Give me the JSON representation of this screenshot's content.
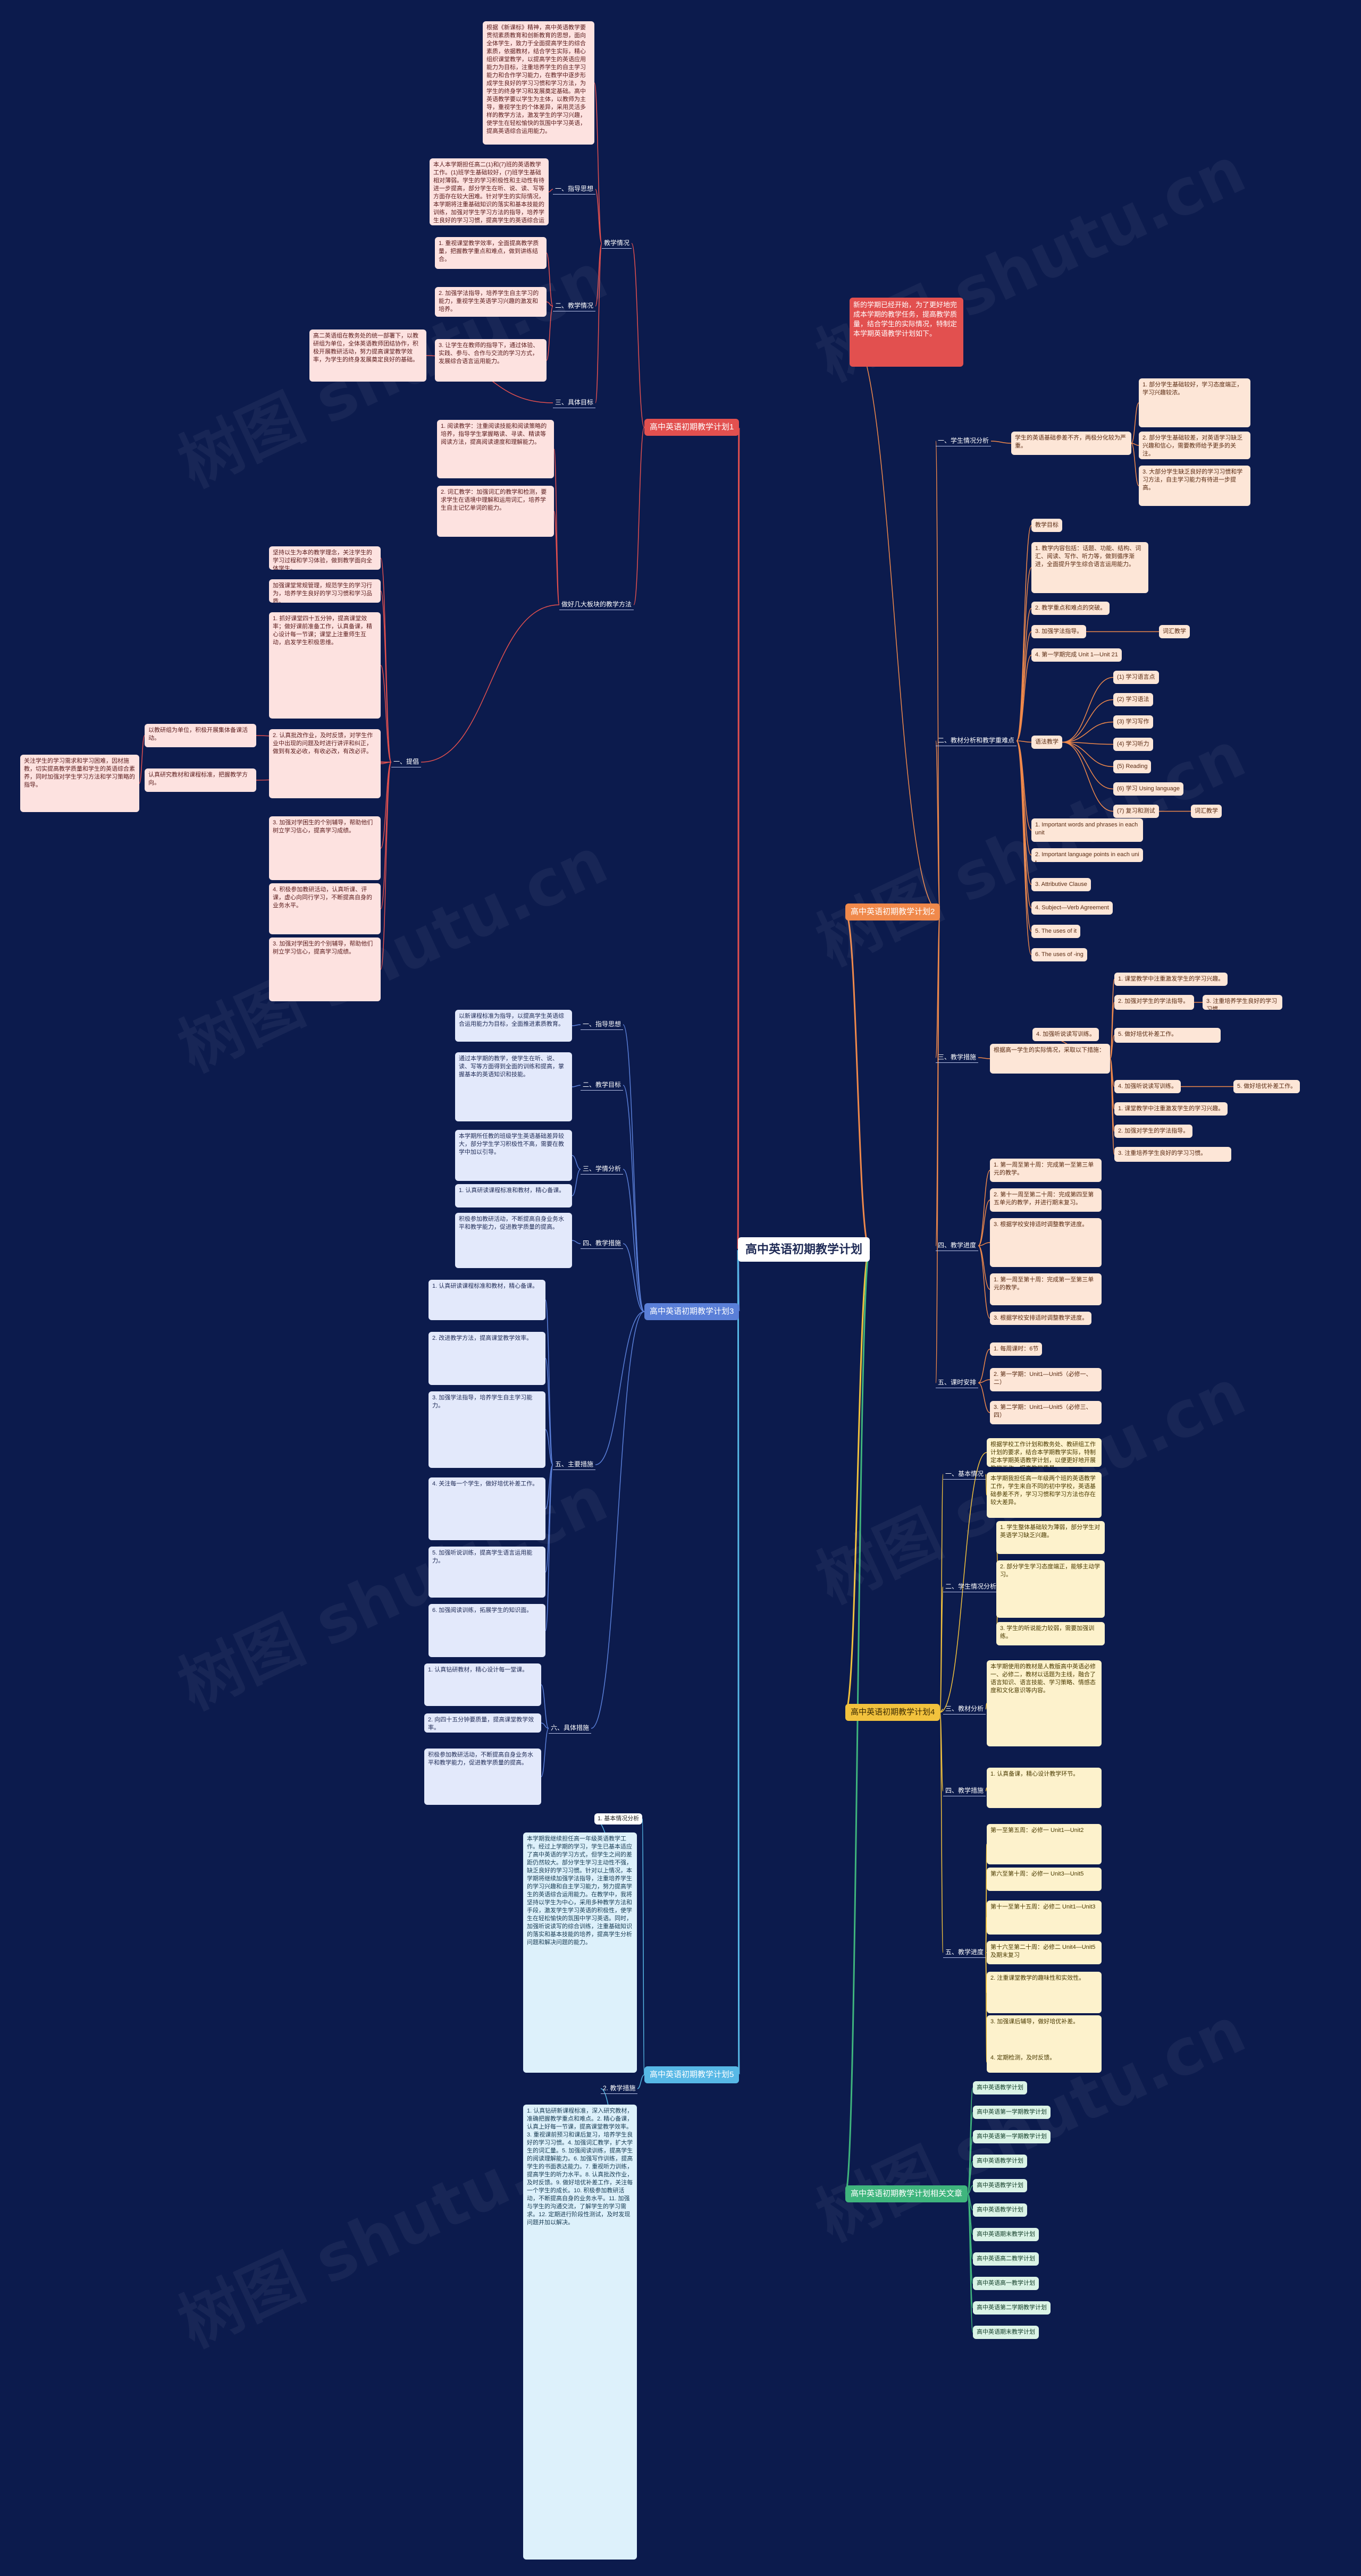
{
  "root": "高中英语初期教学计划",
  "watermark": "树图 shutu.cn",
  "branches": {
    "b1": "高中英语初期教学计划1",
    "b2": "高中英语初期教学计划2",
    "b3": "高中英语初期教学计划3",
    "b4": "高中英语初期教学计划4",
    "b5": "高中英语初期教学计划5",
    "b6": "高中英语初期教学计划相关文章"
  },
  "b1": {
    "sub_jiaoxue": "教学情况",
    "lab_yi": "一、指导思想",
    "lab_er": "二、教学情况",
    "lab_san": "三、具体目标",
    "lab_zuohao": "做好几大板块的教学方法",
    "lab_ti": "一、提倡",
    "t_intro": "根据《新课标》精神，高中英语教学要贯彻素质教育和创新教育的思想，面向全体学生，致力于全面提高学生的综合素质，依据教材，结合学生实际，精心组织课堂教学，以提高学生的英语应用能力为目标，注重培养学生的自主学习能力和合作学习能力，在教学中逐步形成学生良好的学习习惯和学习方法，为学生的终身学习和发展奠定基础。高中英语教学要以学生为主体，以教师为主导，重视学生的个体差异，采用灵活多样的教学方法，激发学生的学习兴趣，使学生在轻松愉快的氛围中学习英语，提高英语综合运用能力。",
    "t_yi": "本人本学期担任高二(1)和(7)班的英语教学工作。(1)班学生基础较好，(7)班学生基础相对薄弱。学生的学习积极性和主动性有待进一步提高，部分学生在听、说、读、写等方面存在较大困难。针对学生的实际情况，本学期将注重基础知识的落实和基本技能的训练，加强对学生学习方法的指导，培养学生良好的学习习惯，提高学生的英语综合运用能力。",
    "t_er1": "1. 重视课堂教学效率，全面提高教学质量，把握教学重点和难点，做到讲练结合。",
    "t_er2": "2. 加强学法指导，培养学生自主学习的能力，重视学生英语学习兴趣的激发和培养。",
    "t_er3": "3. 让学生在教师的指导下，通过体验、实践、参与、合作与交流的学习方式，发展综合语言运用能力。",
    "t_san": "高二英语组在教务处的统一部署下，以教研组为单位，全体英语教师团结协作，积极开展教研活动，努力提高课堂教学效率，为学生的终身发展奠定良好的基础。",
    "t_dz1": "1. 阅读教学：注重阅读技能和阅读策略的培养，指导学生掌握略读、寻读、精读等阅读方法，提高阅读速度和理解能力。",
    "t_dz2": "2. 词汇教学：加强词汇的教学和检测，要求学生在语境中理解和运用词汇，培养学生自主记忆单词的能力。",
    "t_ti_a": "坚持以生为本的教学理念，关注学生的学习过程和学习体验，做到教学面向全体学生。",
    "t_ti_b": "加强课堂常规管理，规范学生的学习行为，培养学生良好的学习习惯和学习品质。",
    "t_ti_c": "1. 抓好课堂四十五分钟，提高课堂效率；做好课前准备工作，认真备课，精心设计每一节课；课堂上注重师生互动，启发学生积极思维。",
    "t_ti_d": "2. 认真批改作业，及时反馈，对学生作业中出现的问题及时进行讲评和纠正，做到有发必收，有收必改，有改必评。",
    "t_ti_e": "3. 加强对学困生的个别辅导，帮助他们树立学习信心，提高学习成绩。",
    "t_ti_f": "4. 积极参加教研活动，认真听课、评课，虚心向同行学习，不断提高自身的业务水平。",
    "t_left1": "以教研组为单位，积极开展集体备课活动。",
    "t_left2": "认真研究教材和课程标准，把握教学方向。",
    "t_left3": "关注学生的学习需求和学习困难，因材施教，切实提高教学质量和学生的英语综合素养，同时加强对学生学习方法和学习策略的指导。"
  },
  "b2": {
    "t_red": "新的学期已经开始，为了更好地完成本学期的教学任务，提高教学质量，结合学生的实际情况，特制定本学期英语教学计划如下。",
    "lab_1": "一、学生情况分析",
    "t_1a": "学生的英语基础参差不齐，两极分化较为严重。",
    "t_1b": "1. 部分学生基础较好，学习态度端正，学习兴趣较浓。",
    "t_1c": "2. 部分学生基础较差，对英语学习缺乏兴趣和信心，需要教师给予更多的关注。",
    "t_1d": "3. 大部分学生缺乏良好的学习习惯和学习方法，自主学习能力有待进一步提高。",
    "lab_2": "二、教材分析和教学重难点",
    "t_2a": "教学目标",
    "t_2b": "1. 教学内容包括：话题、功能、结构、词汇、阅读、写作、听力等，做到循序渐进，全面提升学生综合语言运用能力。",
    "t_2c": "2. 教学重点和难点的突破。",
    "t_2d": "3. 加强学法指导。",
    "t_2e": "词汇教学",
    "t_2f": "4. 第一学期完成 Unit 1—Unit 21",
    "t_2g": "语法教学",
    "pills": [
      "(1) 学习语言点",
      "(2) 学习语法",
      "(3) 学习写作",
      "(4) 学习听力",
      "(5) Reading",
      "(6) 学习 Using language",
      "(7) 复习和测试"
    ],
    "t_2h": "1. Important words and phrases in each unit",
    "t_2i": "2. Important language points in each unit",
    "t_2j": "3. Attributive Clause",
    "t_2k": "4. Subject—Verb Agreement",
    "t_2l": "5. The uses of it",
    "t_2m": "6. The uses of -ing",
    "lab_3": "三、教学措施",
    "t_3a": "根据高一学生的实际情况，采取以下措施：",
    "t_3b": "1. 课堂教学中注重激发学生的学习兴趣。",
    "t_3c": "2. 加强对学生的学法指导。",
    "t_3d": "3. 注重培养学生良好的学习习惯。",
    "t_3e": "4. 加强听说读写训练。",
    "t_3f": "5. 做好培优补差工作。",
    "lab_4": "四、教学进度",
    "t_4a": "1. 第一周至第十周：完成第一至第三单元的教学。",
    "t_4b": "2. 第十一周至第二十周：完成第四至第五单元的教学，并进行期末复习。",
    "t_4c": "3. 根据学校安排适时调整教学进度。",
    "lab_5": "五、课时安排",
    "t_5a": "1. 每周课时：6节",
    "t_5b": "2. 第一学期：Unit1—Unit5（必修一、二）",
    "t_5c": "3. 第二学期：Unit1—Unit5（必修三、四）"
  },
  "b3": {
    "lab_1": "一、指导思想",
    "t_1": "以新课程标准为指导，以提高学生英语综合运用能力为目标，全面推进素质教育。",
    "lab_2": "二、教学目标",
    "t_2": "通过本学期的教学，使学生在听、说、读、写等方面得到全面的训练和提高，掌握基本的英语知识和技能。",
    "lab_3": "三、学情分析",
    "t_3": "本学期所任教的班级学生英语基础差异较大，部分学生学习积极性不高，需要在教学中加以引导。",
    "lab_4": "四、教学措施",
    "t_4a": "1. 认真研读课程标准和教材，精心备课。",
    "t_4b": "2. 改进教学方法，提高课堂教学效率。",
    "t_4c": "3. 加强学法指导，培养学生自主学习能力。",
    "t_4d": "4. 关注每一个学生，做好培优补差工作。",
    "t_4e": "5. 加强听说训练，提高学生语言运用能力。",
    "t_4f": "6. 加强阅读训练，拓展学生的知识面。",
    "lab_5": "五、主要措施",
    "t_5a": "1. 认真钻研教材，精心设计每一堂课。",
    "t_5b": "2. 向四十五分钟要质量，提高课堂教学效率。",
    "lab_6": "六、具体措施",
    "t_6": "积极参加教研活动，不断提高自身业务水平和教学能力，促进教学质量的提高。"
  },
  "b4": {
    "t_intro": "根据学校工作计划和教务处、教研组工作计划的要求，结合本学期教学实际，特制定本学期英语教学计划，以便更好地开展教学工作，提高教学质量。",
    "lab_1": "一、基本情况",
    "t_1": "本学期我担任高一年级两个班的英语教学工作，学生来自不同的初中学校，英语基础参差不齐，学习习惯和学习方法也存在较大差异。",
    "lab_2": "二、学生情况分析",
    "t_2a": "1. 学生整体基础较为薄弱，部分学生对英语学习缺乏兴趣。",
    "t_2b": "2. 部分学生学习态度端正，能够主动学习。",
    "t_2c": "3. 学生的听说能力较弱，需要加强训练。",
    "lab_3": "三、教材分析",
    "t_3": "本学期使用的教材是人教版高中英语必修一、必修二，教材以话题为主线，融合了语言知识、语言技能、学习策略、情感态度和文化意识等内容。",
    "lab_4": "四、教学措施",
    "t_4a": "1. 认真备课，精心设计教学环节。",
    "t_4b": "2. 注重课堂教学的趣味性和实效性。",
    "t_4c": "3. 加强课后辅导，做好培优补差。",
    "t_4d": "4. 定期检测，及时反馈。",
    "lab_5": "五、教学进度",
    "t_5a": "第一至第五周：必修一 Unit1—Unit2",
    "t_5b": "第六至第十周：必修一 Unit3—Unit5",
    "t_5c": "第十一至第十五周：必修二 Unit1—Unit3",
    "t_5d": "第十六至第二十周：必修二 Unit4—Unit5 及期末复习"
  },
  "b5": {
    "lab_1": "1. 基本情况分析",
    "t_1": "本学期我继续担任高一年级英语教学工作。经过上学期的学习，学生已基本适应了高中英语的学习方式，但学生之间的差距仍然较大。部分学生学习主动性不强，缺乏良好的学习习惯。针对以上情况，本学期将继续加强学法指导，注重培养学生的学习兴趣和自主学习能力，努力提高学生的英语综合运用能力。在教学中，我将坚持以学生为中心，采用多种教学方法和手段，激发学生学习英语的积极性，使学生在轻松愉快的氛围中学习英语。同时，加强听说读写的综合训练，注重基础知识的落实和基本技能的培养，提高学生分析问题和解决问题的能力。",
    "lab_2": "2. 教学措施",
    "t_2": "1. 认真钻研新课程标准，深入研究教材，准确把握教学重点和难点。2. 精心备课，认真上好每一节课，提高课堂教学效率。3. 重视课前预习和课后复习，培养学生良好的学习习惯。4. 加强词汇教学，扩大学生的词汇量。5. 加强阅读训练，提高学生的阅读理解能力。6. 加强写作训练，提高学生的书面表达能力。7. 重视听力训练，提高学生的听力水平。8. 认真批改作业，及时反馈。9. 做好培优补差工作，关注每一个学生的成长。10. 积极参加教研活动，不断提高自身的业务水平。11. 加强与学生的沟通交流，了解学生的学习需求。12. 定期进行阶段性测试，及时发现问题并加以解决。"
  },
  "b6": {
    "items": [
      "高中英语教学计划",
      "高中英语第一学期教学计划",
      "高中英语第一学期教学计划",
      "高中英语教学计划",
      "高中英语教学计划",
      "高中英语教学计划",
      "高中英语期末教学计划",
      "高中英语高二教学计划",
      "高中英语高一教学计划",
      "高中英语第二学期教学计划",
      "高中英语期末教学计划"
    ]
  }
}
